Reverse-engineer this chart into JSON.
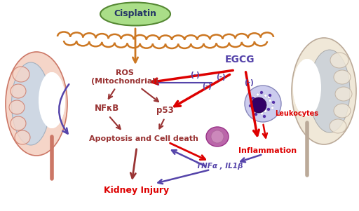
{
  "bg_color": "#ffffff",
  "cisplatin_label": "Cisplatin",
  "egcg_label": "EGCG",
  "ros_label": "ROS\n(Mitochondrial)",
  "nfkb_label": "NFκB",
  "p53_label": "p53",
  "apoptosis_label": "Apoptosis and Cell death",
  "inflammation_label": "Inflammation",
  "leukocytes_label": "Leukocytes",
  "tnf_label": "TNFα , IL1β",
  "kidney_label": "Kidney Injury",
  "dark_red": "#993333",
  "bright_red": "#DD0000",
  "purple": "#5544AA",
  "orange": "#CC7722",
  "green_fill": "#AADE88",
  "green_border": "#558833",
  "kidney_fill": "#F5D5C8",
  "kidney_border": "#CC7766",
  "kidney_inner": "#C8D8E8",
  "kidney_inner_border": "#99AABB",
  "right_kidney_fill": "#F0E8D8",
  "right_kidney_border": "#BBAA99",
  "right_kidney_inner": "#C8D0D8"
}
